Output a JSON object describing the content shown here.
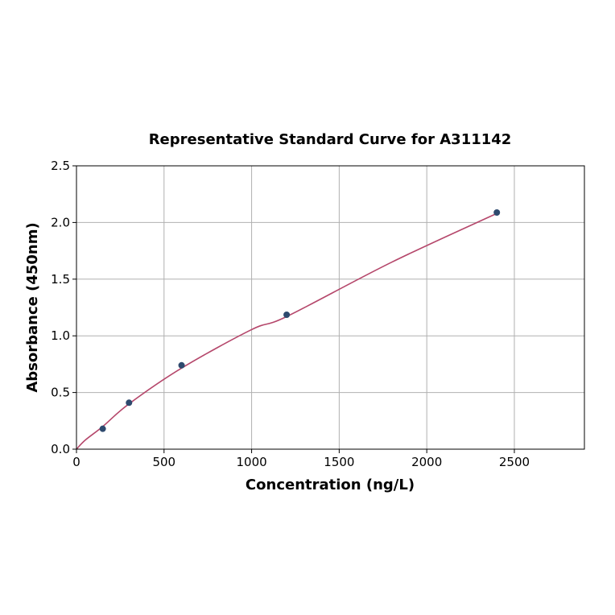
{
  "chart_data": {
    "type": "scatter",
    "title": "Representative Standard Curve for A311142",
    "xlabel": "Concentration (ng/L)",
    "ylabel": "Absorbance (450nm)",
    "xlim": [
      0,
      2900
    ],
    "ylim": [
      0,
      2.5
    ],
    "xticks": [
      0,
      500,
      1000,
      1500,
      2000,
      2500
    ],
    "yticks": [
      0.0,
      0.5,
      1.0,
      1.5,
      2.0,
      2.5
    ],
    "xtick_labels": [
      "0",
      "500",
      "1000",
      "1500",
      "2000",
      "2500"
    ],
    "ytick_labels": [
      "0.0",
      "0.5",
      "1.0",
      "1.5",
      "2.0",
      "2.5"
    ],
    "grid": true,
    "points": {
      "x": [
        150,
        300,
        600,
        1200,
        2400
      ],
      "y": [
        0.18,
        0.41,
        0.74,
        1.186,
        2.088
      ],
      "color": "#2e4a6e"
    },
    "fit_curve": {
      "x": [
        0,
        50,
        150,
        300,
        600,
        1000,
        1200,
        1800,
        2400
      ],
      "y": [
        0,
        0.08,
        0.2,
        0.4,
        0.715,
        1.055,
        1.17,
        1.65,
        2.08
      ],
      "color": "#b5476b"
    }
  }
}
